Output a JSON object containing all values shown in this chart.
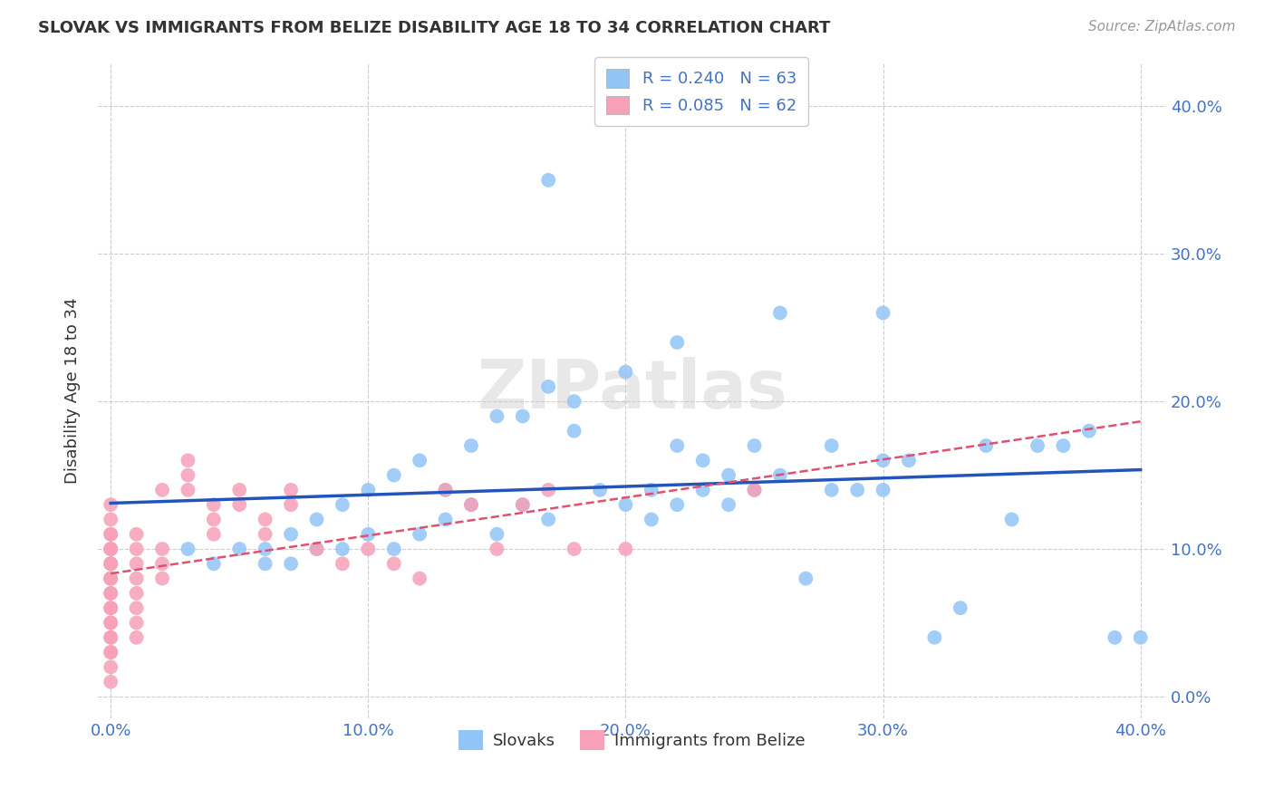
{
  "title": "SLOVAK VS IMMIGRANTS FROM BELIZE DISABILITY AGE 18 TO 34 CORRELATION CHART",
  "source": "Source: ZipAtlas.com",
  "xlabel_ticks": [
    "0.0%",
    "10.0%",
    "20.0%",
    "30.0%",
    "40.0%"
  ],
  "ylabel_ticks": [
    "0.0%",
    "10.0%",
    "20.0%",
    "30.0%",
    "40.0%"
  ],
  "xlabel_tick_vals": [
    0.0,
    0.1,
    0.2,
    0.3,
    0.4
  ],
  "ylabel_tick_vals": [
    0.0,
    0.1,
    0.2,
    0.3,
    0.4
  ],
  "xlim": [
    -0.005,
    0.41
  ],
  "ylim": [
    -0.015,
    0.43
  ],
  "ylabel": "Disability Age 18 to 34",
  "legend_labels": [
    "Slovaks",
    "Immigrants from Belize"
  ],
  "slovak_color": "#92c5f7",
  "belize_color": "#f7a0b8",
  "slovak_line_color": "#2255bb",
  "belize_line_color": "#e05070",
  "grid_color": "#cccccc",
  "background_color": "#ffffff",
  "title_color": "#333333",
  "tick_label_color": "#4472c4",
  "R_slovak": 0.24,
  "N_slovak": 63,
  "R_belize": 0.085,
  "N_belize": 62,
  "watermark": "ZIPatlas",
  "slovak_x": [
    0.03,
    0.04,
    0.05,
    0.06,
    0.06,
    0.07,
    0.07,
    0.08,
    0.08,
    0.09,
    0.09,
    0.1,
    0.1,
    0.11,
    0.11,
    0.12,
    0.12,
    0.13,
    0.13,
    0.14,
    0.14,
    0.15,
    0.15,
    0.16,
    0.16,
    0.17,
    0.17,
    0.18,
    0.18,
    0.19,
    0.2,
    0.2,
    0.21,
    0.21,
    0.22,
    0.22,
    0.23,
    0.23,
    0.24,
    0.24,
    0.25,
    0.25,
    0.26,
    0.27,
    0.28,
    0.28,
    0.29,
    0.3,
    0.3,
    0.31,
    0.32,
    0.33,
    0.34,
    0.35,
    0.36,
    0.37,
    0.38,
    0.39,
    0.4,
    0.3,
    0.26,
    0.22,
    0.17
  ],
  "slovak_y": [
    0.1,
    0.09,
    0.1,
    0.1,
    0.09,
    0.11,
    0.09,
    0.12,
    0.1,
    0.13,
    0.1,
    0.14,
    0.11,
    0.15,
    0.1,
    0.16,
    0.11,
    0.14,
    0.12,
    0.13,
    0.17,
    0.11,
    0.19,
    0.19,
    0.13,
    0.21,
    0.12,
    0.18,
    0.2,
    0.14,
    0.22,
    0.13,
    0.14,
    0.12,
    0.17,
    0.13,
    0.16,
    0.14,
    0.15,
    0.13,
    0.17,
    0.14,
    0.15,
    0.08,
    0.14,
    0.17,
    0.14,
    0.16,
    0.14,
    0.16,
    0.04,
    0.06,
    0.17,
    0.12,
    0.17,
    0.17,
    0.18,
    0.04,
    0.04,
    0.26,
    0.26,
    0.24,
    0.35
  ],
  "belize_x": [
    0.0,
    0.0,
    0.0,
    0.0,
    0.0,
    0.0,
    0.0,
    0.0,
    0.0,
    0.0,
    0.0,
    0.0,
    0.0,
    0.0,
    0.0,
    0.0,
    0.0,
    0.0,
    0.0,
    0.0,
    0.0,
    0.0,
    0.0,
    0.0,
    0.0,
    0.01,
    0.01,
    0.01,
    0.01,
    0.01,
    0.01,
    0.01,
    0.01,
    0.02,
    0.02,
    0.02,
    0.02,
    0.03,
    0.03,
    0.03,
    0.04,
    0.04,
    0.04,
    0.05,
    0.05,
    0.06,
    0.06,
    0.07,
    0.07,
    0.08,
    0.09,
    0.1,
    0.11,
    0.12,
    0.13,
    0.14,
    0.15,
    0.16,
    0.17,
    0.18,
    0.2,
    0.25
  ],
  "belize_y": [
    0.08,
    0.09,
    0.1,
    0.11,
    0.07,
    0.06,
    0.05,
    0.04,
    0.03,
    0.08,
    0.09,
    0.1,
    0.07,
    0.06,
    0.05,
    0.04,
    0.03,
    0.02,
    0.01,
    0.08,
    0.09,
    0.1,
    0.11,
    0.12,
    0.13,
    0.1,
    0.11,
    0.09,
    0.08,
    0.07,
    0.06,
    0.05,
    0.04,
    0.14,
    0.1,
    0.09,
    0.08,
    0.16,
    0.15,
    0.14,
    0.13,
    0.12,
    0.11,
    0.14,
    0.13,
    0.12,
    0.11,
    0.14,
    0.13,
    0.1,
    0.09,
    0.1,
    0.09,
    0.08,
    0.14,
    0.13,
    0.1,
    0.13,
    0.14,
    0.1,
    0.1,
    0.14
  ]
}
